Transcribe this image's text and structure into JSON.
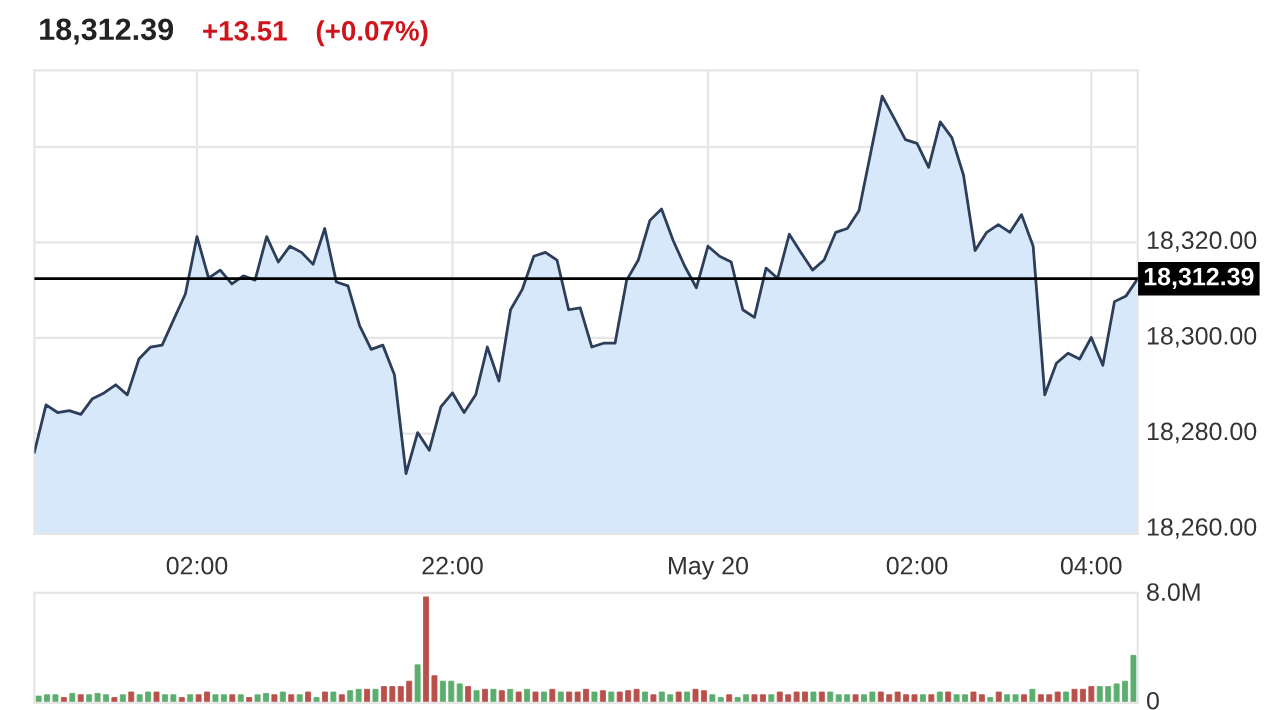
{
  "chart_data": [
    {
      "type": "area",
      "title": "18,312.39",
      "annotations": [
        "+13.51",
        "(+0.07%)"
      ],
      "categories": [
        null,
        null,
        null,
        null,
        null,
        null,
        null,
        null,
        null,
        null,
        null,
        null,
        null,
        null,
        "02:00",
        null,
        null,
        null,
        null,
        null,
        null,
        null,
        null,
        null,
        null,
        null,
        null,
        null,
        null,
        null,
        null,
        null,
        null,
        null,
        null,
        null,
        "22:00",
        null,
        null,
        null,
        null,
        null,
        null,
        null,
        null,
        null,
        null,
        null,
        null,
        null,
        null,
        null,
        null,
        null,
        null,
        null,
        null,
        null,
        "May 20",
        null,
        null,
        null,
        null,
        null,
        null,
        null,
        null,
        null,
        null,
        null,
        null,
        null,
        null,
        null,
        null,
        null,
        "02:00",
        null,
        null,
        null,
        null,
        null,
        null,
        null,
        null,
        null,
        null,
        null,
        null,
        null,
        null,
        "04:00",
        null,
        null,
        null,
        null
      ],
      "series": [
        {
          "color": "#2c3e5a",
          "values": [
            18276.1,
            18286.0,
            18284.4,
            18284.8,
            18284.0,
            18287.3,
            18288.5,
            18290.2,
            18288.1,
            18295.6,
            18298.1,
            18298.5,
            18303.9,
            18309.2,
            18321.2,
            18312.5,
            18314.2,
            18311.3,
            18313.0,
            18312.1,
            18321.2,
            18315.9,
            18319.2,
            18317.9,
            18315.4,
            18322.9,
            18311.7,
            18310.9,
            18302.6,
            18297.6,
            18298.5,
            18292.3,
            18271.6,
            18280.2,
            18276.5,
            18285.6,
            18288.5,
            18284.4,
            18288.1,
            18298.1,
            18291.0,
            18305.9,
            18310.1,
            18317.1,
            18317.9,
            18316.3,
            18305.9,
            18306.3,
            18298.1,
            18298.9,
            18298.9,
            18312.1,
            18316.3,
            18324.6,
            18327.0,
            18320.4,
            18315.0,
            18310.5,
            18319.2,
            18317.1,
            18315.9,
            18305.9,
            18304.3,
            18314.6,
            18312.5,
            18321.7,
            18317.9,
            18314.2,
            18316.3,
            18322.1,
            18322.9,
            18326.6,
            18338.6,
            18350.6,
            18346.1,
            18341.5,
            18340.7,
            18335.7,
            18345.2,
            18341.9,
            18334.1,
            18318.3,
            18322.1,
            18323.7,
            18322.1,
            18325.8,
            18319.2,
            18288.1,
            18294.7,
            18296.8,
            18295.6,
            18300.1,
            18294.3,
            18307.6,
            18308.8,
            18312.4
          ]
        }
      ],
      "ylim": [
        18259,
        18356
      ],
      "yticks": [
        {
          "value": 18260,
          "label": "18,260.00"
        },
        {
          "value": 18280,
          "label": "18,280.00"
        },
        {
          "value": 18300,
          "label": "18,300.00"
        },
        {
          "value": 18320,
          "label": "18,320.00"
        },
        {
          "value": 18340,
          "label": null
        }
      ],
      "ref_lines": [
        {
          "axis": "y",
          "value": 18312.39,
          "label": "18,312.39",
          "color": "#000000"
        }
      ],
      "grid": true
    },
    {
      "type": "bar",
      "categories": [
        null,
        null,
        null,
        null,
        null,
        null,
        null,
        null,
        null,
        null,
        null,
        null,
        null,
        null,
        null,
        null,
        null,
        null,
        null,
        null,
        null,
        null,
        null,
        null,
        null,
        null,
        null,
        null,
        null,
        null,
        null,
        null,
        null,
        null,
        null,
        null,
        null,
        null,
        null,
        null,
        null,
        null,
        null,
        null,
        null,
        null,
        null,
        null,
        null,
        null,
        null,
        null,
        null,
        null,
        null,
        null,
        null,
        null,
        null,
        null,
        null,
        null,
        null,
        null,
        null,
        null,
        null,
        null,
        null,
        null,
        null,
        null,
        null,
        null,
        null,
        null,
        null,
        null,
        null,
        null,
        null,
        null,
        null,
        null,
        null,
        null,
        null,
        null,
        null,
        null,
        null,
        null,
        null,
        null,
        null,
        null,
        null,
        null,
        null,
        null,
        null,
        null,
        null,
        null,
        null,
        null,
        null,
        null,
        null,
        null,
        null,
        null,
        null,
        null,
        null,
        null,
        null,
        null,
        null,
        null,
        null,
        null,
        null,
        null,
        null,
        null,
        null,
        null,
        null,
        null,
        null
      ],
      "values": [
        0.5,
        0.6,
        0.6,
        0.4,
        0.7,
        0.6,
        0.6,
        0.7,
        0.6,
        0.4,
        0.6,
        0.8,
        0.6,
        0.8,
        0.8,
        0.6,
        0.6,
        0.4,
        0.6,
        0.6,
        0.8,
        0.6,
        0.6,
        0.6,
        0.6,
        0.4,
        0.6,
        0.7,
        0.6,
        0.8,
        0.6,
        0.6,
        0.8,
        0.4,
        0.8,
        0.8,
        0.6,
        0.9,
        1.0,
        1.0,
        1.0,
        1.2,
        1.2,
        1.2,
        1.6,
        2.8,
        7.8,
        2.0,
        1.6,
        1.6,
        1.4,
        1.2,
        0.9,
        1.0,
        1.0,
        0.9,
        1.0,
        0.8,
        1.0,
        0.8,
        0.8,
        1.0,
        0.8,
        0.8,
        0.8,
        1.0,
        0.8,
        0.9,
        0.8,
        0.8,
        0.9,
        1.0,
        0.8,
        0.6,
        0.8,
        0.6,
        0.8,
        0.8,
        1.0,
        0.9,
        0.6,
        0.4,
        0.6,
        0.4,
        0.6,
        0.6,
        0.6,
        0.6,
        0.8,
        0.6,
        0.8,
        0.8,
        0.8,
        0.8,
        0.8,
        0.6,
        0.6,
        0.6,
        0.6,
        0.8,
        0.8,
        0.6,
        0.8,
        0.6,
        0.6,
        0.6,
        0.6,
        0.8,
        0.8,
        0.6,
        0.6,
        0.8,
        0.6,
        0.4,
        0.8,
        0.6,
        0.6,
        0.6,
        1.0,
        0.6,
        0.6,
        0.8,
        0.8,
        1.0,
        1.0,
        1.2,
        1.2,
        1.2,
        1.4,
        1.6,
        3.5
      ],
      "colors": [
        "#5cae6e",
        "#5cae6e",
        "#5cae6e",
        "#b9504a",
        "#5cae6e",
        "#b9504a",
        "#5cae6e",
        "#5cae6e",
        "#5cae6e",
        "#b9504a",
        "#5cae6e",
        "#b9504a",
        "#5cae6e",
        "#5cae6e",
        "#b9504a",
        "#5cae6e",
        "#5cae6e",
        "#b9504a",
        "#5cae6e",
        "#b9504a",
        "#b9504a",
        "#5cae6e",
        "#5cae6e",
        "#b9504a",
        "#5cae6e",
        "#b9504a",
        "#5cae6e",
        "#5cae6e",
        "#b9504a",
        "#5cae6e",
        "#b9504a",
        "#5cae6e",
        "#b9504a",
        "#5cae6e",
        "#b9504a",
        "#5cae6e",
        "#b9504a",
        "#5cae6e",
        "#5cae6e",
        "#b9504a",
        "#5cae6e",
        "#b9504a",
        "#b9504a",
        "#b9504a",
        "#b9504a",
        "#5cae6e",
        "#b9504a",
        "#b9504a",
        "#5cae6e",
        "#5cae6e",
        "#5cae6e",
        "#b9504a",
        "#5cae6e",
        "#b9504a",
        "#5cae6e",
        "#b9504a",
        "#5cae6e",
        "#b9504a",
        "#5cae6e",
        "#b9504a",
        "#5cae6e",
        "#b9504a",
        "#5cae6e",
        "#b9504a",
        "#b9504a",
        "#b9504a",
        "#5cae6e",
        "#b9504a",
        "#5cae6e",
        "#b9504a",
        "#b9504a",
        "#b9504a",
        "#5cae6e",
        "#b9504a",
        "#5cae6e",
        "#5cae6e",
        "#b9504a",
        "#5cae6e",
        "#b9504a",
        "#b9504a",
        "#5cae6e",
        "#5cae6e",
        "#b9504a",
        "#5cae6e",
        "#5cae6e",
        "#b9504a",
        "#b9504a",
        "#5cae6e",
        "#b9504a",
        "#b9504a",
        "#b9504a",
        "#b9504a",
        "#5cae6e",
        "#b9504a",
        "#5cae6e",
        "#5cae6e",
        "#5cae6e",
        "#b9504a",
        "#5cae6e",
        "#5cae6e",
        "#b9504a",
        "#b9504a",
        "#b9504a",
        "#b9504a",
        "#b9504a",
        "#5cae6e",
        "#b9504a",
        "#5cae6e",
        "#b9504a",
        "#5cae6e",
        "#5cae6e",
        "#b9504a",
        "#b9504a",
        "#5cae6e",
        "#b9504a",
        "#5cae6e",
        "#5cae6e",
        "#b9504a",
        "#5cae6e",
        "#b9504a",
        "#b9504a",
        "#b9504a",
        "#5cae6e",
        "#b9504a",
        "#b9504a",
        "#b9504a",
        "#5cae6e",
        "#5cae6e",
        "#5cae6e",
        "#5cae6e",
        "#5cae6e"
      ],
      "ylim": [
        0,
        8.1
      ],
      "yticks": [
        {
          "value": 0,
          "label": "0"
        },
        {
          "value": 8,
          "label": "8.0M"
        }
      ],
      "tick_labels": "y"
    }
  ]
}
